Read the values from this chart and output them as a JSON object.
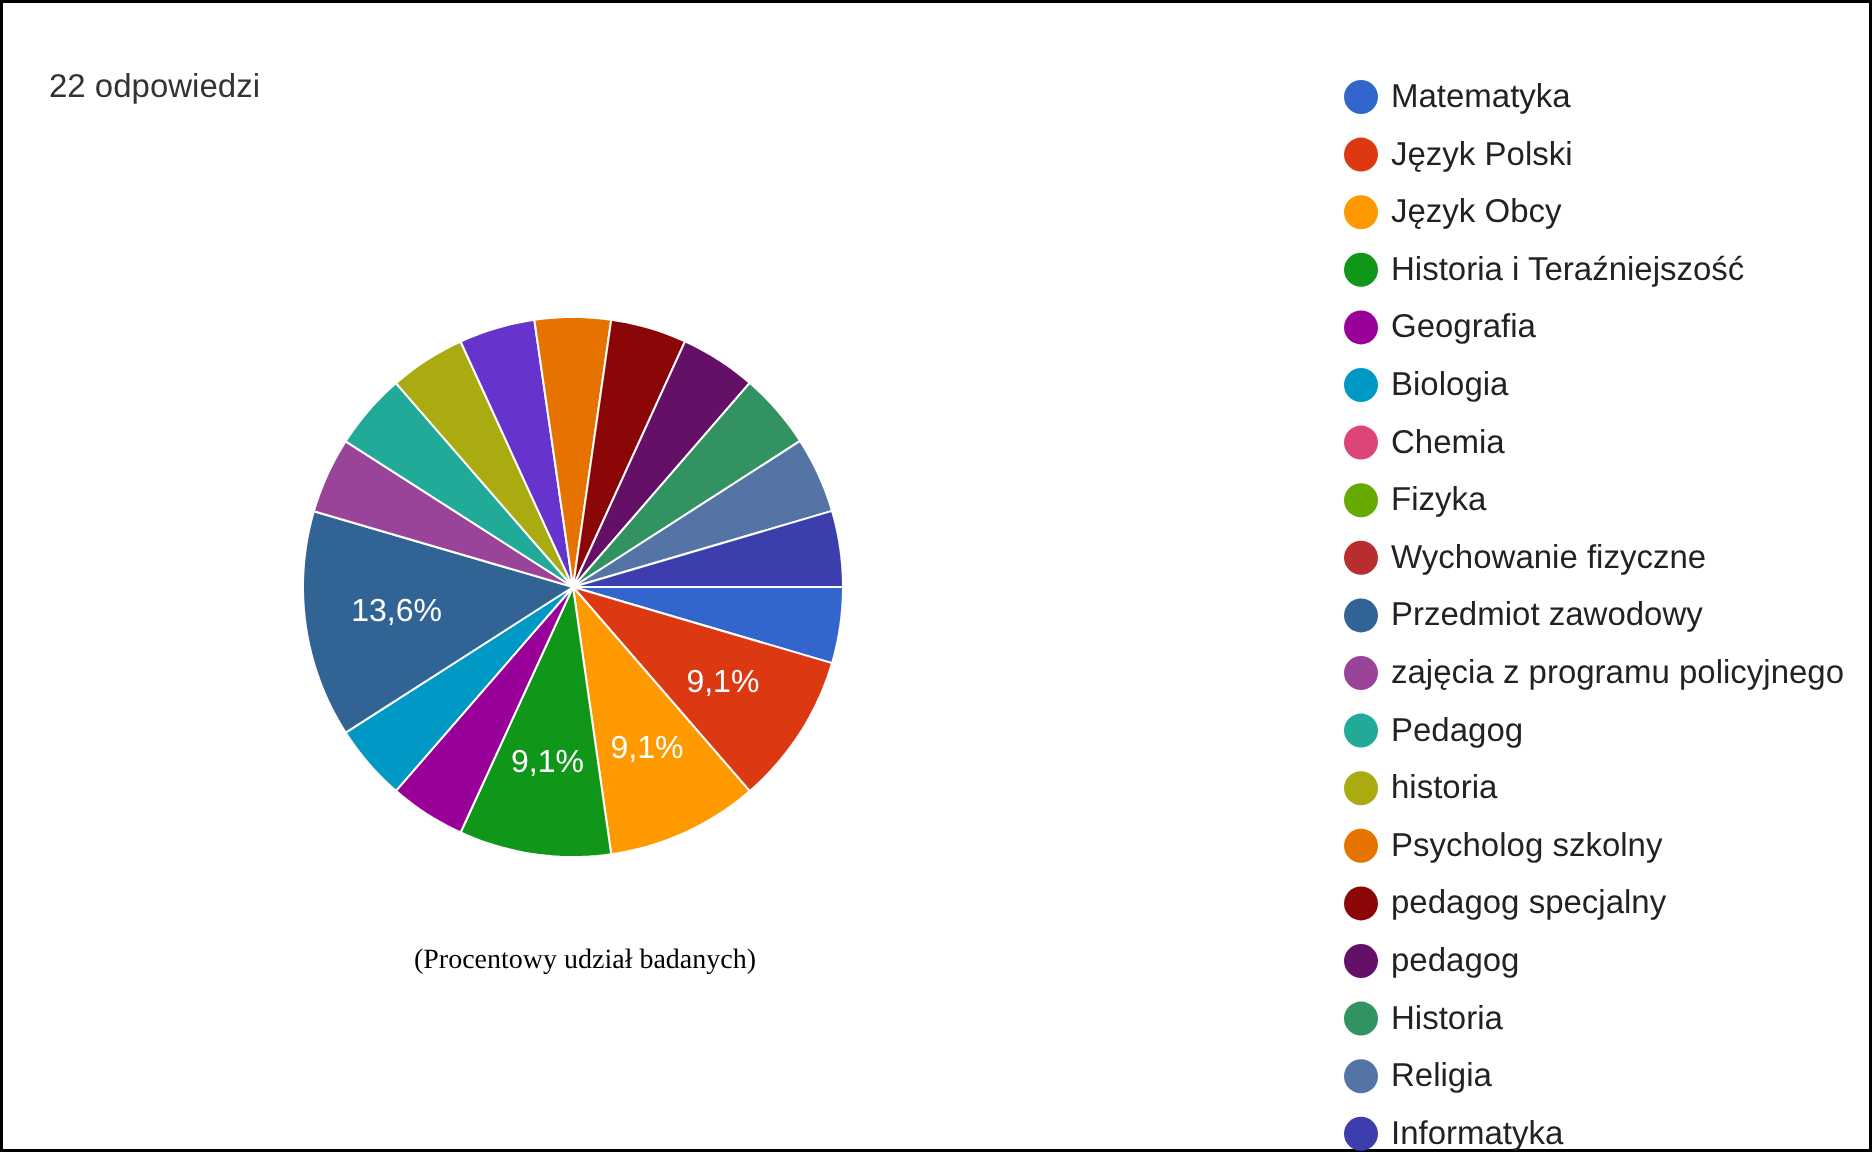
{
  "chart_data": {
    "type": "pie",
    "categories": [
      "Matematyka",
      "Język Polski",
      "Język Obcy",
      "Historia i Teraźniejszość",
      "Geografia",
      "Biologia",
      "Chemia",
      "Fizyka",
      "Wychowanie fizyczne",
      "Przedmiot zawodowy",
      "zajęcia z programu policyjnego",
      "Pedagog",
      "historia",
      null,
      "Psycholog szkolny",
      "pedagog specjalny",
      "pedagog",
      "Historia",
      "Religia",
      "Informatyka"
    ],
    "values": [
      4.55,
      9.1,
      9.1,
      9.1,
      4.55,
      4.55,
      0,
      0,
      0,
      13.6,
      4.55,
      4.55,
      4.55,
      4.55,
      4.55,
      4.55,
      4.55,
      4.55,
      4.55,
      4.55
    ],
    "colors": [
      "#3366cc",
      "#dc3912",
      "#ff9900",
      "#109618",
      "#990099",
      "#0099c6",
      "#dd4477",
      "#66aa00",
      "#b82e2e",
      "#316395",
      "#994499",
      "#22aa99",
      "#aaaa11",
      "#6633cc",
      "#e67300",
      "#8b0707",
      "#651067",
      "#329262",
      "#5574a6",
      "#3b3eac"
    ],
    "value_labels": [
      null,
      "9,1%",
      "9,1%",
      "9,1%",
      null,
      null,
      null,
      null,
      null,
      "13,6%",
      null,
      null,
      null,
      null,
      null,
      null,
      null,
      null,
      null,
      null
    ],
    "legend": "right",
    "annotations": [
      "22 odpowiedzi",
      "(Procentowy udział badanych)"
    ]
  }
}
